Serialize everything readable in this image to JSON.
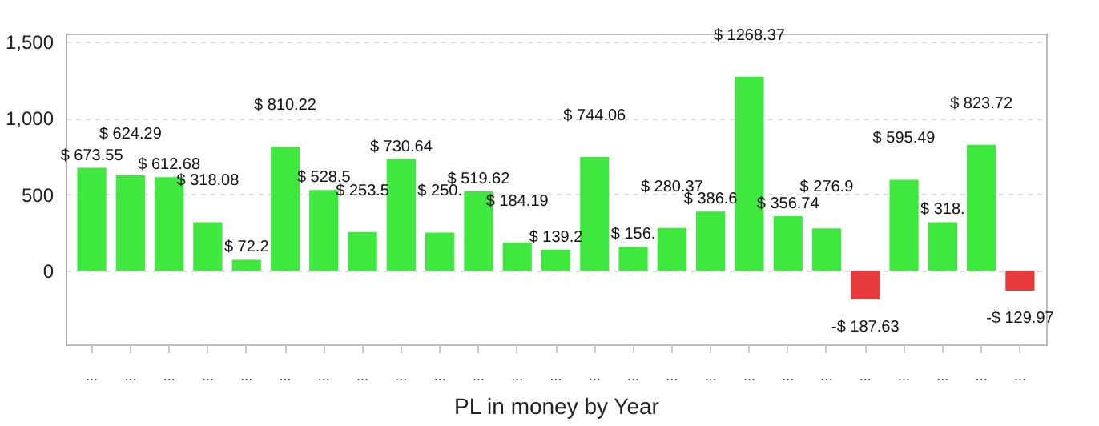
{
  "chart_data": {
    "type": "bar",
    "xlabel": "PL in money by Year",
    "categories": [
      "...",
      "...",
      "...",
      "...",
      "...",
      "...",
      "...",
      "...",
      "...",
      "...",
      "...",
      "...",
      "...",
      "...",
      "...",
      "...",
      "...",
      "...",
      "...",
      "...",
      "...",
      "...",
      "...",
      "...",
      "..."
    ],
    "values": [
      673.55,
      624.29,
      612.68,
      318.08,
      72.2,
      810.22,
      528.5,
      253.5,
      730.64,
      250,
      519.62,
      184.19,
      139.2,
      744.06,
      156,
      280.37,
      386.6,
      1268.37,
      356.74,
      276.9,
      -187.63,
      595.49,
      318,
      823.72,
      -129.97
    ],
    "value_labels": [
      "$ 673.55",
      "$ 624.29",
      "$ 612.68",
      "$ 318.08",
      "$ 72.2",
      "$ 810.22",
      "$ 528.5",
      "$ 253.5",
      "$ 730.64",
      "$ 250.",
      "$ 519.62",
      "$ 184.19",
      "$ 139.2",
      "$ 744.06",
      "$ 156.",
      "$ 280.37",
      "$ 386.6",
      "$ 1268.37",
      "$ 356.74",
      "$ 276.9",
      "-$ 187.63",
      "$ 595.49",
      "$ 318.",
      "$ 823.72",
      "-$ 129.97"
    ],
    "colors": [
      "#3ee83e",
      "#3ee83e",
      "#3ee83e",
      "#3ee83e",
      "#3ee83e",
      "#3ee83e",
      "#3ee83e",
      "#3ee83e",
      "#3ee83e",
      "#3ee83e",
      "#3ee83e",
      "#3ee83e",
      "#3ee83e",
      "#3ee83e",
      "#3ee83e",
      "#3ee83e",
      "#3ee83e",
      "#3ee83e",
      "#3ee83e",
      "#3ee83e",
      "#e83c3c",
      "#3ee83e",
      "#3ee83e",
      "#3ee83e",
      "#e83c3c"
    ],
    "ylim": [
      -480,
      1550
    ],
    "yticks": [
      0,
      500,
      {
        "value": 1000,
        "label": "1,000"
      },
      {
        "value": 1500,
        "label": "1,500"
      }
    ],
    "grid": "y"
  }
}
